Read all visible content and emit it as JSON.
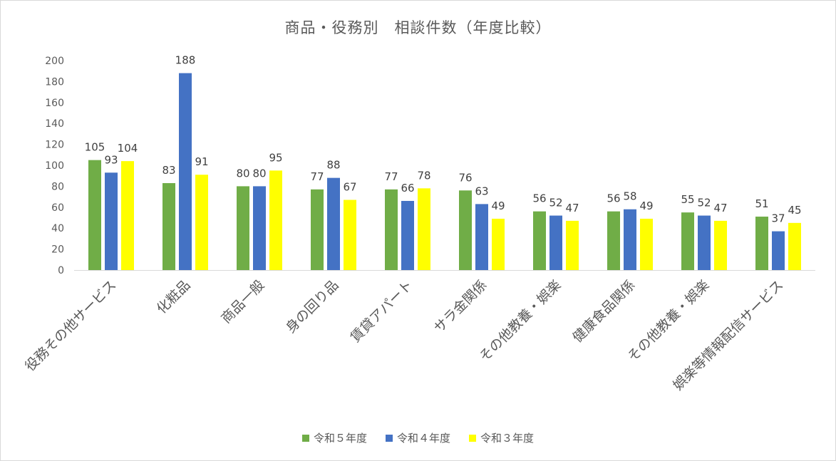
{
  "chart_data": {
    "type": "bar",
    "title": "商品・役務別　相談件数（年度比較）",
    "categories": [
      "役務その他サービス",
      "化粧品",
      "商品一般",
      "身の回り品",
      "賃貸アパート",
      "サラ金関係",
      "その他教養・娯楽",
      "健康食品関係",
      "その他教養・娯楽",
      "娯楽等情報配信サービス"
    ],
    "series": [
      {
        "name": "令和５年度",
        "color": "#70ad47",
        "values": [
          105,
          83,
          80,
          77,
          77,
          76,
          56,
          56,
          55,
          51
        ]
      },
      {
        "name": "令和４年度",
        "color": "#4472c4",
        "values": [
          93,
          188,
          80,
          88,
          66,
          63,
          52,
          58,
          52,
          37
        ]
      },
      {
        "name": "令和３年度",
        "color": "#ffff00",
        "values": [
          104,
          91,
          95,
          67,
          78,
          49,
          47,
          49,
          47,
          45
        ]
      }
    ],
    "ylim": [
      0,
      200
    ],
    "yticks": [
      0,
      20,
      40,
      60,
      80,
      100,
      120,
      140,
      160,
      180,
      200
    ],
    "xlabel": "",
    "ylabel": "",
    "grid": false,
    "legend_position": "bottom",
    "data_labels": true
  }
}
